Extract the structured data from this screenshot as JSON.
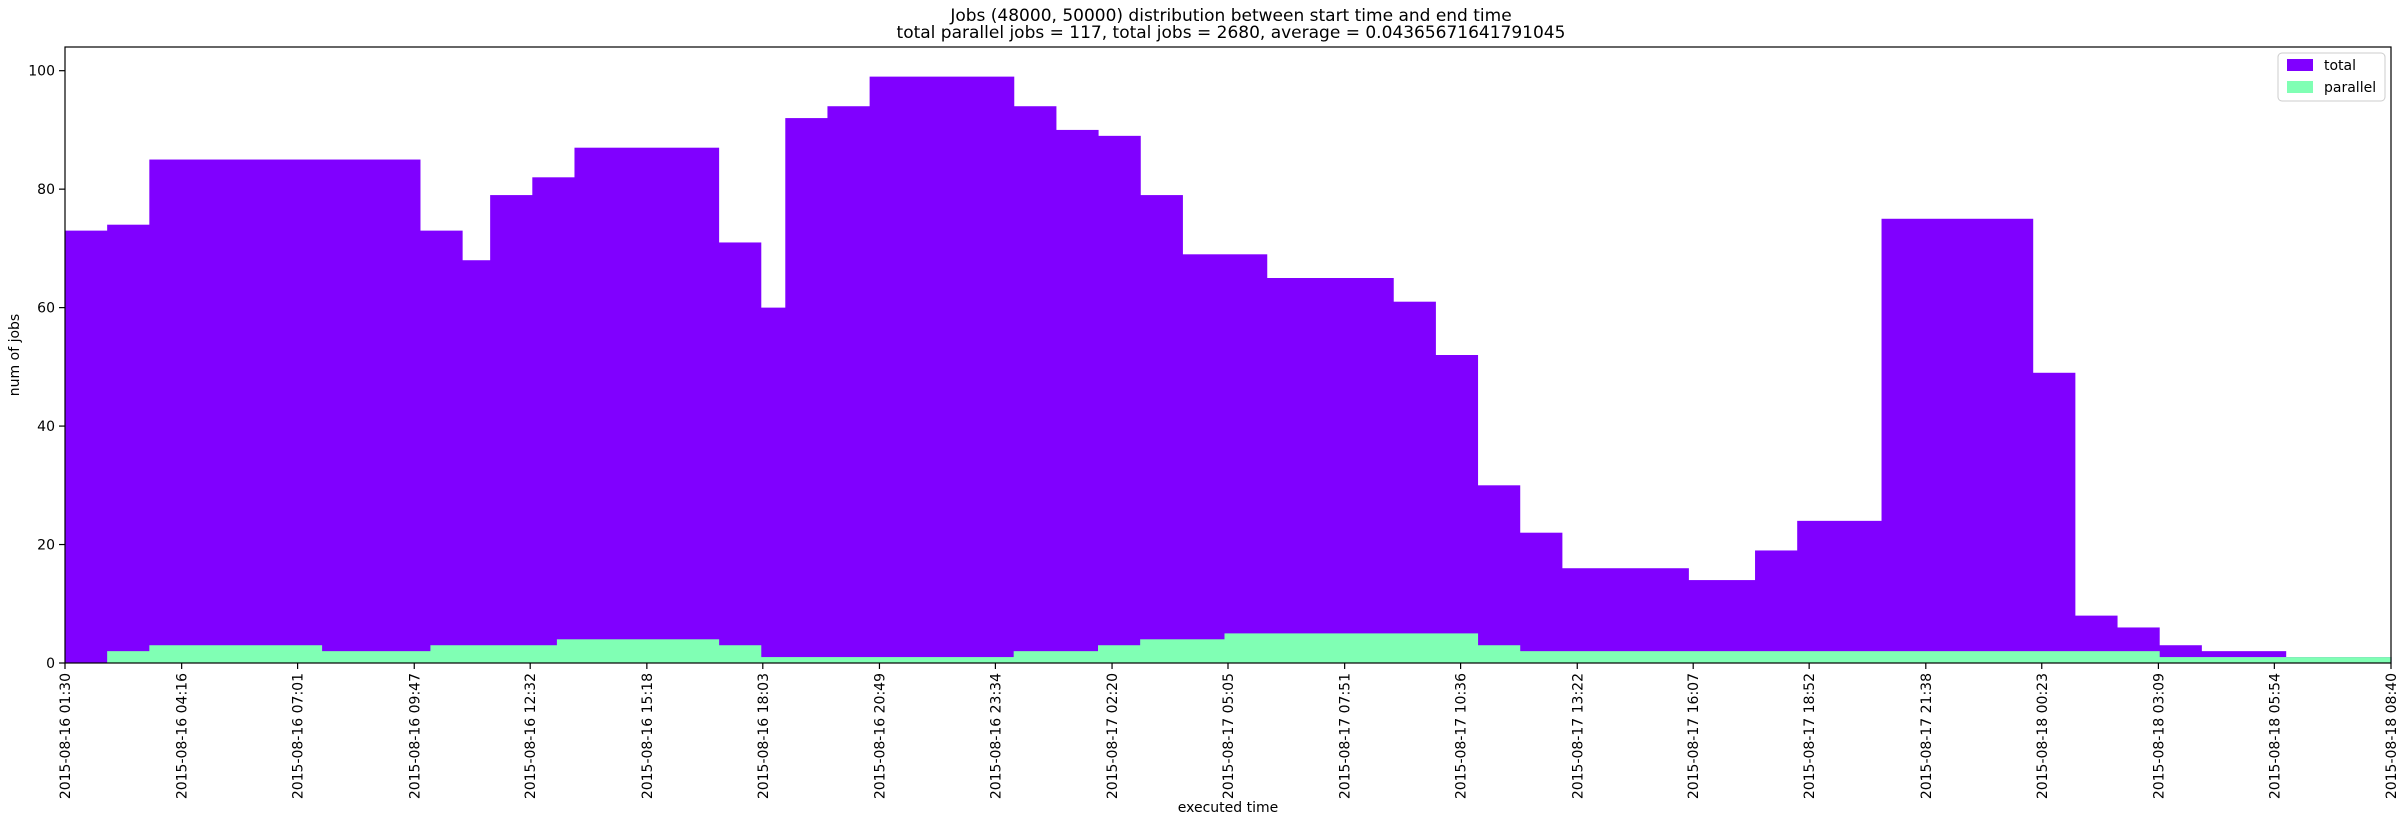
{
  "chart_data": {
    "type": "area",
    "title": "Jobs (48000, 50000) distribution between start time and end time",
    "subtitle": "total parallel jobs = 117, total jobs = 2680, average = 0.04365671641791045",
    "xlabel": "executed time",
    "ylabel": "num of jobs",
    "ylim": [
      0,
      104
    ],
    "xlim": [
      "2015-08-16 01:30",
      "2015-08-18 08:40"
    ],
    "yticks": [
      0,
      20,
      40,
      60,
      80,
      100
    ],
    "xticks": [
      "2015-08-16 01:30",
      "2015-08-16 04:16",
      "2015-08-16 07:01",
      "2015-08-16 09:47",
      "2015-08-16 12:32",
      "2015-08-16 15:18",
      "2015-08-16 18:03",
      "2015-08-16 20:49",
      "2015-08-16 23:34",
      "2015-08-17 02:20",
      "2015-08-17 05:05",
      "2015-08-17 07:51",
      "2015-08-17 10:36",
      "2015-08-17 13:22",
      "2015-08-17 16:07",
      "2015-08-17 18:52",
      "2015-08-17 21:38",
      "2015-08-18 00:23",
      "2015-08-18 03:09",
      "2015-08-18 05:54",
      "2015-08-18 08:40"
    ],
    "grid": false,
    "legend_position": "top-right",
    "colors": {
      "total": "#8000ff",
      "parallel": "#80ffb4",
      "axis": "#000000"
    },
    "series": [
      {
        "name": "total",
        "color": "#8000ff",
        "steps": [
          {
            "start": "2015-08-16 01:30",
            "end": "2015-08-16 02:30",
            "value": 73
          },
          {
            "start": "2015-08-16 02:30",
            "end": "2015-08-16 03:30",
            "value": 74
          },
          {
            "start": "2015-08-16 03:30",
            "end": "2015-08-16 09:55",
            "value": 85
          },
          {
            "start": "2015-08-16 09:55",
            "end": "2015-08-16 10:55",
            "value": 73
          },
          {
            "start": "2015-08-16 10:55",
            "end": "2015-08-16 11:35",
            "value": 68
          },
          {
            "start": "2015-08-16 11:35",
            "end": "2015-08-16 12:35",
            "value": 79
          },
          {
            "start": "2015-08-16 12:35",
            "end": "2015-08-16 13:35",
            "value": 82
          },
          {
            "start": "2015-08-16 13:35",
            "end": "2015-08-16 17:00",
            "value": 87
          },
          {
            "start": "2015-08-16 17:00",
            "end": "2015-08-16 18:00",
            "value": 71
          },
          {
            "start": "2015-08-16 18:00",
            "end": "2015-08-16 18:35",
            "value": 60
          },
          {
            "start": "2015-08-16 18:35",
            "end": "2015-08-16 19:35",
            "value": 92
          },
          {
            "start": "2015-08-16 19:35",
            "end": "2015-08-16 20:35",
            "value": 94
          },
          {
            "start": "2015-08-16 20:35",
            "end": "2015-08-17 00:00",
            "value": 99
          },
          {
            "start": "2015-08-17 00:00",
            "end": "2015-08-17 01:00",
            "value": 94
          },
          {
            "start": "2015-08-17 01:00",
            "end": "2015-08-17 02:00",
            "value": 90
          },
          {
            "start": "2015-08-17 02:00",
            "end": "2015-08-17 03:00",
            "value": 89
          },
          {
            "start": "2015-08-17 03:00",
            "end": "2015-08-17 04:00",
            "value": 79
          },
          {
            "start": "2015-08-17 04:00",
            "end": "2015-08-17 06:00",
            "value": 69
          },
          {
            "start": "2015-08-17 06:00",
            "end": "2015-08-17 09:00",
            "value": 65
          },
          {
            "start": "2015-08-17 09:00",
            "end": "2015-08-17 10:00",
            "value": 61
          },
          {
            "start": "2015-08-17 10:00",
            "end": "2015-08-17 11:00",
            "value": 52
          },
          {
            "start": "2015-08-17 11:00",
            "end": "2015-08-17 12:00",
            "value": 30
          },
          {
            "start": "2015-08-17 12:00",
            "end": "2015-08-17 13:00",
            "value": 22
          },
          {
            "start": "2015-08-17 13:00",
            "end": "2015-08-17 16:00",
            "value": 16
          },
          {
            "start": "2015-08-17 16:00",
            "end": "2015-08-17 17:35",
            "value": 14
          },
          {
            "start": "2015-08-17 17:35",
            "end": "2015-08-17 18:35",
            "value": 19
          },
          {
            "start": "2015-08-17 18:35",
            "end": "2015-08-17 20:35",
            "value": 24
          },
          {
            "start": "2015-08-17 20:35",
            "end": "2015-08-18 00:10",
            "value": 75
          },
          {
            "start": "2015-08-18 00:10",
            "end": "2015-08-18 01:10",
            "value": 49
          },
          {
            "start": "2015-08-18 01:10",
            "end": "2015-08-18 02:10",
            "value": 8
          },
          {
            "start": "2015-08-18 02:10",
            "end": "2015-08-18 03:10",
            "value": 6
          },
          {
            "start": "2015-08-18 03:10",
            "end": "2015-08-18 04:10",
            "value": 3
          },
          {
            "start": "2015-08-18 04:10",
            "end": "2015-08-18 06:10",
            "value": 2
          },
          {
            "start": "2015-08-18 06:10",
            "end": "2015-08-18 08:40",
            "value": 1
          }
        ]
      },
      {
        "name": "parallel",
        "color": "#80ffb4",
        "steps": [
          {
            "start": "2015-08-16 01:30",
            "end": "2015-08-16 02:30",
            "value": 0
          },
          {
            "start": "2015-08-16 02:30",
            "end": "2015-08-16 03:30",
            "value": 2
          },
          {
            "start": "2015-08-16 03:30",
            "end": "2015-08-16 07:35",
            "value": 3
          },
          {
            "start": "2015-08-16 07:35",
            "end": "2015-08-16 10:10",
            "value": 2
          },
          {
            "start": "2015-08-16 10:10",
            "end": "2015-08-16 13:10",
            "value": 3
          },
          {
            "start": "2015-08-16 13:10",
            "end": "2015-08-16 17:00",
            "value": 4
          },
          {
            "start": "2015-08-16 17:00",
            "end": "2015-08-16 18:00",
            "value": 3
          },
          {
            "start": "2015-08-16 18:00",
            "end": "2015-08-17 00:00",
            "value": 1
          },
          {
            "start": "2015-08-17 00:00",
            "end": "2015-08-17 02:00",
            "value": 2
          },
          {
            "start": "2015-08-17 02:00",
            "end": "2015-08-17 03:00",
            "value": 3
          },
          {
            "start": "2015-08-17 03:00",
            "end": "2015-08-17 05:00",
            "value": 4
          },
          {
            "start": "2015-08-17 05:00",
            "end": "2015-08-17 11:00",
            "value": 5
          },
          {
            "start": "2015-08-17 11:00",
            "end": "2015-08-17 12:00",
            "value": 3
          },
          {
            "start": "2015-08-17 12:00",
            "end": "2015-08-18 03:10",
            "value": 2
          },
          {
            "start": "2015-08-18 03:10",
            "end": "2015-08-18 06:10",
            "value": 1
          },
          {
            "start": "2015-08-18 06:10",
            "end": "2015-08-18 08:40",
            "value": 1
          }
        ]
      }
    ]
  }
}
